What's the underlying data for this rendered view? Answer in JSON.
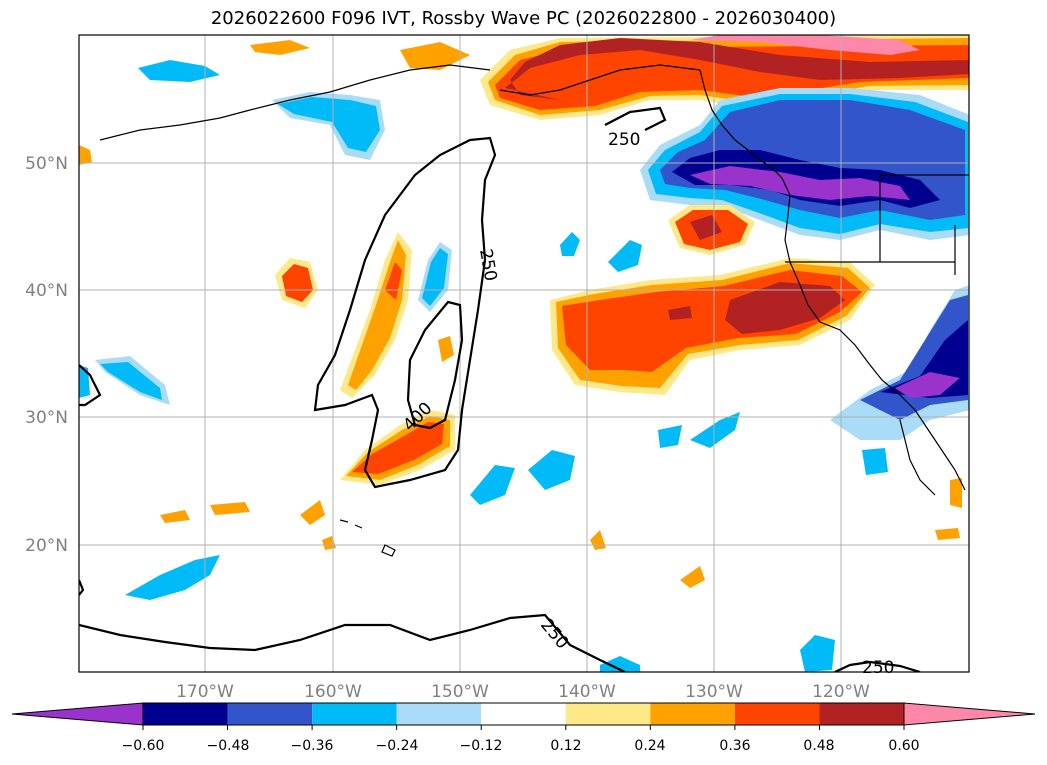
{
  "title": "2026022600 F096 IVT, Rossby Wave PC (2026022800 - 2026030400)",
  "latitudes": [
    "50°N",
    "40°N",
    "30°N",
    "20°N"
  ],
  "longitudes": [
    "170°W",
    "160°W",
    "150°W",
    "140°W",
    "130°W",
    "120°W"
  ],
  "contour_labels": [
    {
      "text": "250",
      "id": "north"
    },
    {
      "text": "250",
      "id": "mid"
    },
    {
      "text": "400",
      "id": "inner"
    },
    {
      "text": "250",
      "id": "south"
    },
    {
      "text": "250",
      "id": "southeast"
    }
  ],
  "colorbar": {
    "ticks": [
      "−0.60",
      "−0.48",
      "−0.36",
      "−0.24",
      "−0.12",
      "0.12",
      "0.24",
      "0.36",
      "0.48",
      "0.60"
    ],
    "colors": [
      "#9933cc",
      "#000090",
      "#3355cc",
      "#00bbf8",
      "#aadcf8",
      "#ffffff",
      "#ffe888",
      "#ffa200",
      "#ff4400",
      "#b22222",
      "#ff88aa"
    ]
  },
  "palette": {
    "purple": "#9933cc",
    "navy": "#000090",
    "blue": "#3355cc",
    "cyan": "#00bbf8",
    "lightblue": "#aadcf8",
    "yellow": "#ffe888",
    "orange": "#ffa200",
    "redorange": "#ff4400",
    "darkred": "#b22222",
    "pink": "#ff88aa"
  }
}
